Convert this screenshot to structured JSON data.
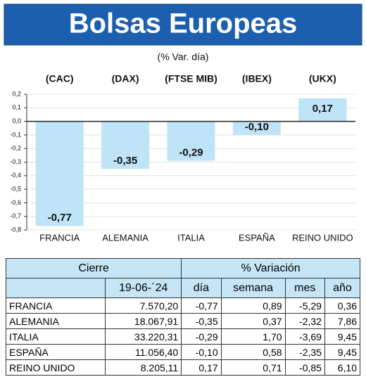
{
  "chart_data": {
    "type": "bar",
    "title": "Bolsas Europeas",
    "subtitle": "(% Var. día)",
    "index_labels": [
      "(CAC)",
      "(DAX)",
      "(FTSE MIB)",
      "(IBEX)",
      "(UKX)"
    ],
    "categories": [
      "FRANCIA",
      "ALEMANIA",
      "ITALIA",
      "ESPAÑA",
      "REINO UNIDO"
    ],
    "values": [
      -0.77,
      -0.35,
      -0.29,
      -0.1,
      0.17
    ],
    "value_labels": [
      "-0,77",
      "-0,35",
      "-0,29",
      "-0,10",
      "0,17"
    ],
    "color": "#bfe3f7",
    "ylim": [
      -0.8,
      0.2
    ],
    "yticks": [
      {
        "value": 0.2,
        "label": "0,2"
      },
      {
        "value": 0.1,
        "label": "0,1"
      },
      {
        "value": 0,
        "label": "0,0"
      },
      {
        "value": -0.1,
        "label": "-0,1"
      },
      {
        "value": -0.2,
        "label": "-0,2"
      },
      {
        "value": -0.3,
        "label": "-0,3"
      },
      {
        "value": -0.4,
        "label": "-0,4"
      },
      {
        "value": -0.5,
        "label": "-0,5"
      },
      {
        "value": -0.6,
        "label": "-0,6"
      },
      {
        "value": -0.7,
        "label": "-0,7"
      },
      {
        "value": -0.8,
        "label": "-0,8"
      }
    ],
    "grid": true
  },
  "table": {
    "header": [
      "Cierre",
      "% Variación"
    ],
    "subheader": [
      "19-06-´24",
      "día",
      "semana",
      "mes",
      "año"
    ],
    "rows": [
      [
        "FRANCIA",
        "7.570,20",
        "-0,77",
        "0,89",
        "-5,29",
        "0,36"
      ],
      [
        "ALEMANIA",
        "18.067,91",
        "-0,35",
        "0,37",
        "-2,32",
        "7,86"
      ],
      [
        "ITALIA",
        "33.220,31",
        "-0,29",
        "1,70",
        "-3,69",
        "9,45"
      ],
      [
        "ESPAÑA",
        "11.056,40",
        "-0,10",
        "0,58",
        "-2,35",
        "9,45"
      ],
      [
        "REINO UNIDO",
        "8.205,11",
        "0,17",
        "0,71",
        "-0,85",
        "6,10"
      ]
    ]
  }
}
